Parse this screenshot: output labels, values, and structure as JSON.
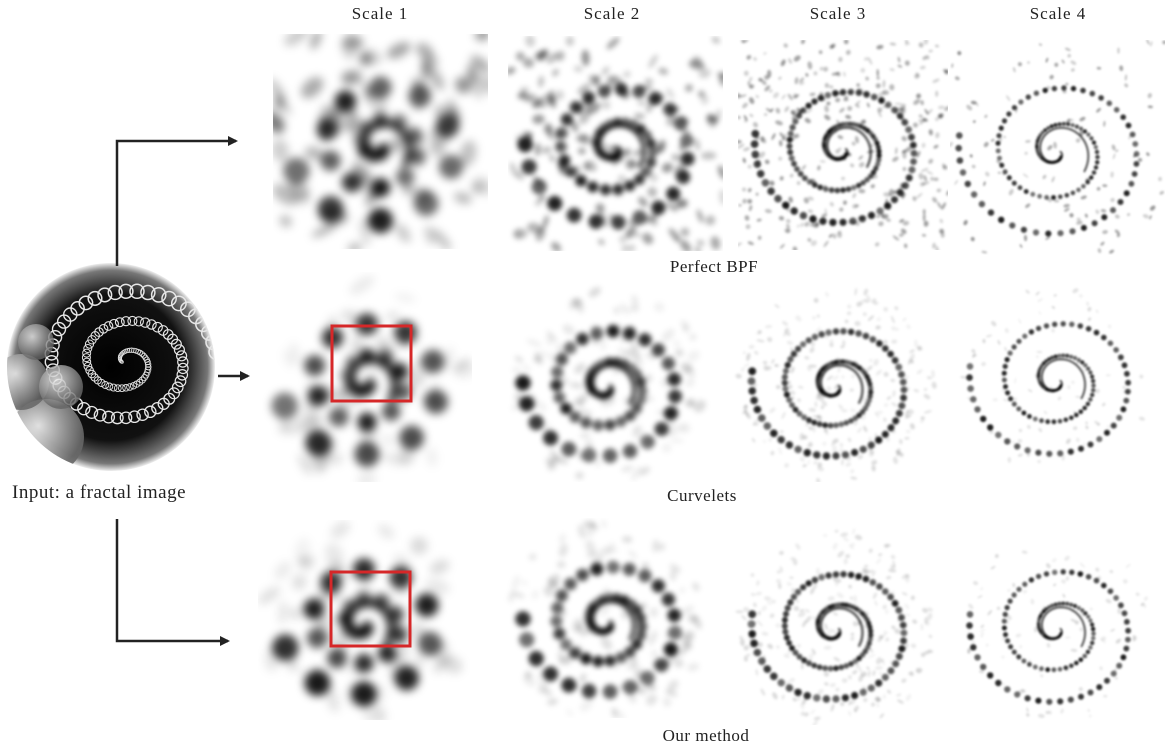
{
  "column_headers": [
    "Scale 1",
    "Scale 2",
    "Scale 3",
    "Scale 4"
  ],
  "row_labels": {
    "bpf": "Perfect BPF",
    "curvelets": "Curvelets",
    "ours": "Our method"
  },
  "input_label": "Input: a fractal image",
  "colors": {
    "highlight_box": "#d62728",
    "arrow": "#222222"
  }
}
